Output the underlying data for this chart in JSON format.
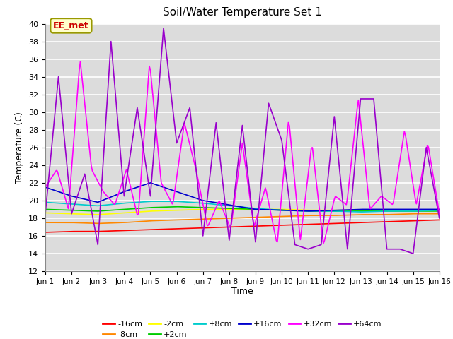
{
  "title": "Soil/Water Temperature Set 1",
  "xlabel": "Time",
  "ylabel": "Temperature (C)",
  "ylim": [
    12,
    40
  ],
  "yticks": [
    12,
    14,
    16,
    18,
    20,
    22,
    24,
    26,
    28,
    30,
    32,
    34,
    36,
    38,
    40
  ],
  "xlim": [
    0,
    15
  ],
  "xtick_labels": [
    "Jun 1",
    "Jun 2",
    "Jun 3",
    "Jun 4",
    "Jun 5",
    "Jun 6",
    "Jun 7",
    "Jun 8",
    "Jun 9",
    "Jun 10",
    "Jun 11",
    "Jun 12",
    "Jun 13",
    "Jun 14",
    "Jun 15",
    "Jun 16"
  ],
  "xtick_positions": [
    0,
    1,
    2,
    3,
    4,
    5,
    6,
    7,
    8,
    9,
    10,
    11,
    12,
    13,
    14,
    15
  ],
  "annotation_text": "EE_met",
  "background_color": "#dcdcdc",
  "grid_color": "#ffffff",
  "colors": {
    "-16cm": "#ff0000",
    "-8cm": "#ff8800",
    "-2cm": "#ffff00",
    "+2cm": "#00cc00",
    "+8cm": "#00cccc",
    "+16cm": "#0000cc",
    "+32cm": "#ff00ff",
    "+64cm": "#9900cc"
  },
  "m16_base": [
    16.4,
    16.5,
    16.5,
    16.6,
    16.7,
    16.8,
    16.9,
    17.0,
    17.1,
    17.2,
    17.3,
    17.4,
    17.5,
    17.6,
    17.7,
    17.8
  ],
  "m8_base": [
    17.5,
    17.5,
    17.4,
    17.5,
    17.7,
    17.8,
    17.9,
    18.0,
    18.1,
    18.2,
    18.3,
    18.3,
    18.4,
    18.4,
    18.5,
    18.5
  ],
  "m2_base": [
    18.6,
    18.5,
    18.4,
    18.6,
    18.8,
    18.9,
    19.0,
    19.0,
    19.0,
    19.0,
    18.9,
    18.9,
    18.9,
    18.9,
    18.9,
    18.9
  ],
  "p2_base": [
    19.0,
    18.9,
    18.8,
    19.0,
    19.2,
    19.3,
    19.2,
    19.1,
    19.0,
    18.9,
    18.8,
    18.8,
    18.8,
    18.8,
    18.8,
    18.8
  ],
  "p8_base": [
    19.8,
    19.6,
    19.4,
    19.7,
    19.9,
    19.9,
    19.7,
    19.4,
    19.1,
    18.9,
    18.8,
    18.8,
    18.7,
    18.8,
    18.8,
    18.9
  ],
  "p16_base": [
    21.5,
    20.5,
    19.8,
    21.0,
    22.0,
    21.0,
    20.0,
    19.5,
    19.0,
    18.9,
    18.8,
    18.9,
    19.0,
    19.0,
    19.0,
    19.0
  ],
  "p32_data": [
    21.5,
    23.5,
    19.0,
    36.0,
    23.5,
    21.0,
    19.5,
    23.5,
    18.0,
    35.7,
    22.0,
    19.5,
    28.8,
    23.5,
    17.0,
    20.0,
    16.8,
    26.5,
    17.0,
    21.5,
    15.0,
    29.3,
    15.5,
    26.5,
    15.0,
    20.5,
    19.5,
    31.5,
    19.0,
    20.5,
    19.5,
    28.0,
    19.5,
    26.5,
    18.5
  ],
  "p64_data": [
    18.5,
    34.0,
    18.5,
    23.0,
    15.0,
    38.0,
    20.5,
    30.5,
    20.5,
    39.5,
    26.5,
    30.5,
    16.0,
    28.8,
    15.5,
    28.5,
    15.3,
    31.0,
    26.8,
    15.0,
    14.5,
    15.0,
    29.5,
    14.5,
    31.5,
    31.5,
    14.5,
    14.5,
    14.0,
    26.0,
    18.0
  ],
  "legend_order": [
    "-16cm",
    "-8cm",
    "-2cm",
    "+2cm",
    "+8cm",
    "+16cm",
    "+32cm",
    "+64cm"
  ]
}
